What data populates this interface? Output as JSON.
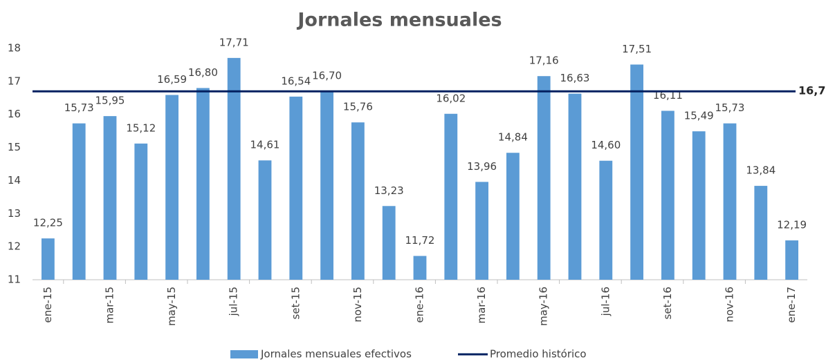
{
  "chart_data": {
    "type": "bar",
    "title": "Jornales mensuales",
    "categories": [
      "ene-15",
      null,
      "mar-15",
      null,
      "may-15",
      null,
      "jul-15",
      null,
      "set-15",
      null,
      "nov-15",
      null,
      "ene-16",
      null,
      "mar-16",
      null,
      "may-16",
      null,
      "jul-16",
      null,
      "set-16",
      null,
      "nov-16",
      null,
      "ene-17"
    ],
    "series": [
      {
        "name": "Jornales mensuales efectivos",
        "color": "#5b9bd5",
        "values": [
          12.25,
          15.73,
          15.95,
          15.12,
          16.59,
          16.8,
          17.71,
          14.61,
          16.54,
          16.7,
          15.76,
          13.23,
          11.72,
          16.02,
          13.96,
          14.84,
          17.16,
          16.63,
          14.6,
          17.51,
          16.11,
          15.49,
          15.73,
          13.84,
          12.19
        ],
        "value_labels": [
          "12,25",
          "15,73",
          "15,95",
          "15,12",
          "16,59",
          "16,80",
          "17,71",
          "14,61",
          "16,54",
          "16,70",
          "15,76",
          "13,23",
          "11,72",
          "16,02",
          "13,96",
          "14,84",
          "17,16",
          "16,63",
          "14,60",
          "17,51",
          "16,11",
          "15,49",
          "15,73",
          "13,84",
          "12,19"
        ]
      }
    ],
    "average": {
      "name": "Promedio histórico",
      "color": "#002060",
      "value": 16.7,
      "label": "16,7"
    },
    "ylim": [
      11,
      18
    ],
    "yticks": [
      11,
      12,
      13,
      14,
      15,
      16,
      17,
      18
    ],
    "grid": false,
    "legend": "bottom"
  }
}
